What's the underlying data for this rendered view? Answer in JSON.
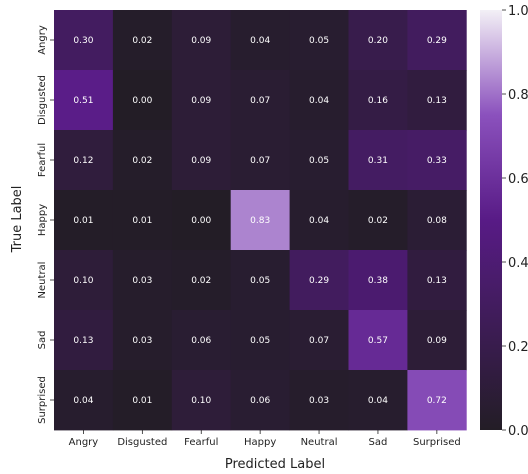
{
  "chart_data": {
    "type": "heatmap",
    "title": "",
    "xlabel": "Predicted Label",
    "ylabel": "True Label",
    "x_categories": [
      "Angry",
      "Disgusted",
      "Fearful",
      "Happy",
      "Neutral",
      "Sad",
      "Surprised"
    ],
    "y_categories": [
      "Angry",
      "Disgusted",
      "Fearful",
      "Happy",
      "Neutral",
      "Sad",
      "Surprised"
    ],
    "values": [
      [
        0.3,
        0.02,
        0.09,
        0.04,
        0.05,
        0.2,
        0.29
      ],
      [
        0.51,
        0.0,
        0.09,
        0.07,
        0.04,
        0.16,
        0.13
      ],
      [
        0.12,
        0.02,
        0.09,
        0.07,
        0.05,
        0.31,
        0.33
      ],
      [
        0.01,
        0.01,
        0.0,
        0.83,
        0.04,
        0.02,
        0.08
      ],
      [
        0.1,
        0.03,
        0.02,
        0.05,
        0.29,
        0.38,
        0.13
      ],
      [
        0.13,
        0.03,
        0.06,
        0.05,
        0.07,
        0.57,
        0.09
      ],
      [
        0.04,
        0.01,
        0.1,
        0.06,
        0.03,
        0.04,
        0.72
      ]
    ],
    "colorbar": {
      "range": [
        0.0,
        1.0
      ],
      "ticks": [
        "0.0",
        "0.2",
        "0.4",
        "0.6",
        "0.8",
        "1.0"
      ],
      "colors": [
        "#231d26",
        "#581b86",
        "#8b51bd",
        "#f3f0f6"
      ]
    }
  }
}
